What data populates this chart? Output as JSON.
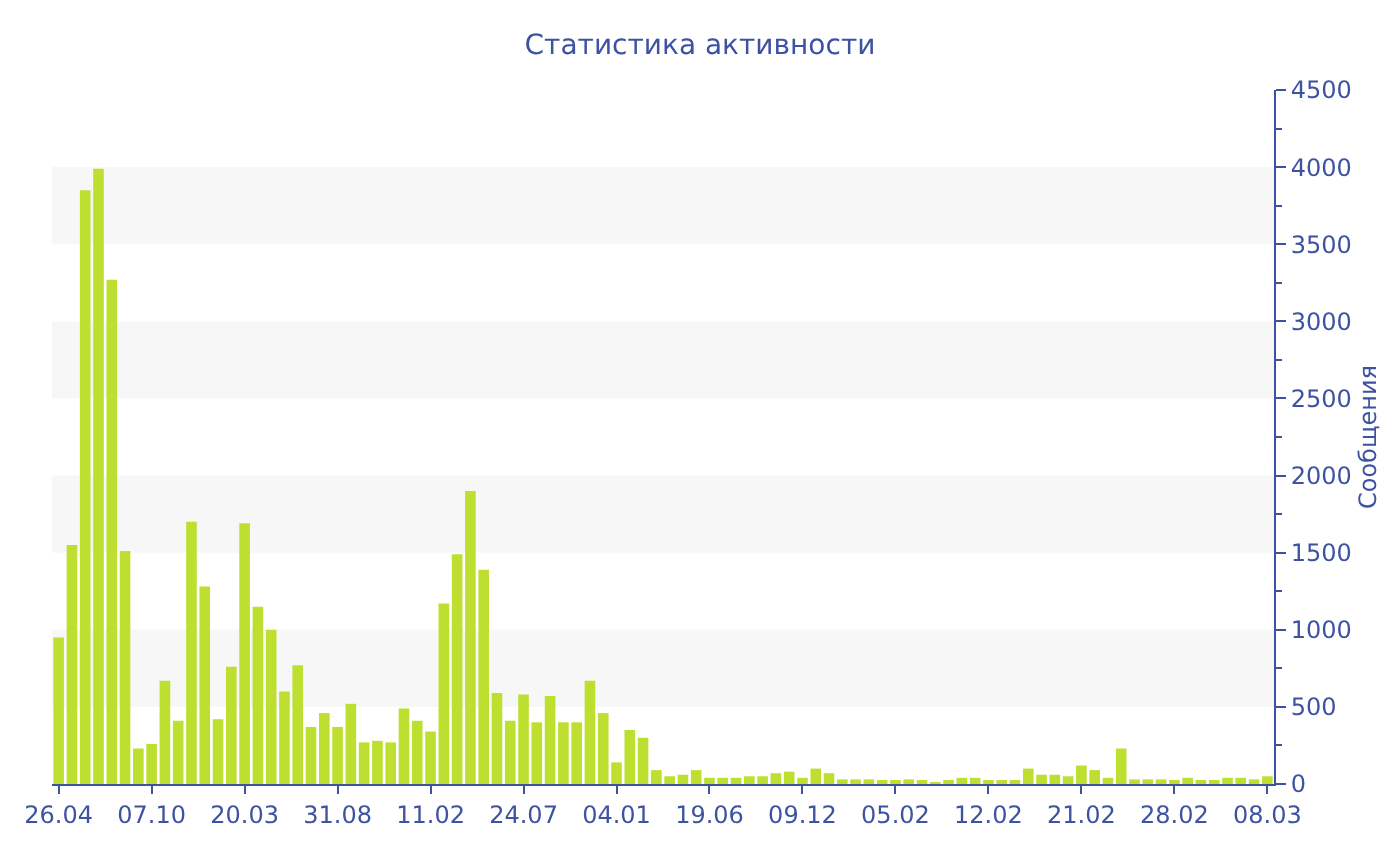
{
  "chart_data": {
    "type": "bar",
    "title": "Статистика активности",
    "ylabel": "Сообщения",
    "categories": [
      "26.04",
      null,
      null,
      null,
      null,
      null,
      null,
      "07.10",
      null,
      null,
      null,
      null,
      null,
      null,
      "20.03",
      null,
      null,
      null,
      null,
      null,
      null,
      "31.08",
      null,
      null,
      null,
      null,
      null,
      null,
      "11.02",
      null,
      null,
      null,
      null,
      null,
      null,
      "24.07",
      null,
      null,
      null,
      null,
      null,
      null,
      "04.01",
      null,
      null,
      null,
      null,
      null,
      null,
      "19.06",
      null,
      null,
      null,
      null,
      null,
      null,
      "09.12",
      null,
      null,
      null,
      null,
      null,
      null,
      "05.02",
      null,
      null,
      null,
      null,
      null,
      null,
      "12.02",
      null,
      null,
      null,
      null,
      null,
      null,
      "21.02",
      null,
      null,
      null,
      null,
      null,
      null,
      "28.02",
      null,
      null,
      null,
      null,
      null,
      null,
      "08.03"
    ],
    "values": [
      950,
      1550,
      3850,
      3990,
      3270,
      1510,
      230,
      260,
      670,
      410,
      1700,
      1280,
      420,
      760,
      1690,
      1150,
      1000,
      600,
      770,
      370,
      460,
      370,
      520,
      270,
      280,
      270,
      490,
      410,
      340,
      1170,
      1490,
      1900,
      1390,
      590,
      410,
      580,
      400,
      570,
      400,
      400,
      670,
      460,
      140,
      350,
      300,
      90,
      50,
      60,
      90,
      40,
      40,
      40,
      50,
      50,
      70,
      80,
      40,
      100,
      70,
      30,
      30,
      30,
      20,
      20,
      30,
      20,
      10,
      20,
      40,
      40,
      20,
      20,
      20,
      100,
      60,
      60,
      50,
      120,
      90,
      40,
      230,
      30,
      30,
      30,
      20,
      40,
      20,
      20,
      40,
      40,
      30,
      50
    ],
    "color": "#bde030",
    "ylim": [
      0,
      4500
    ],
    "yticks": [
      0,
      500,
      1000,
      1500,
      2000,
      2500,
      3000,
      3500,
      4000,
      4500
    ],
    "grid": false,
    "legend": false,
    "bands": [
      {
        "axis": "y",
        "from": 500,
        "to": 1000,
        "color": "#f7f7f7"
      },
      {
        "axis": "y",
        "from": 1500,
        "to": 2000,
        "color": "#f7f7f7"
      },
      {
        "axis": "y",
        "from": 2500,
        "to": 3000,
        "color": "#f7f7f7"
      },
      {
        "axis": "y",
        "from": 3500,
        "to": 4000,
        "color": "#f7f7f7"
      }
    ]
  }
}
